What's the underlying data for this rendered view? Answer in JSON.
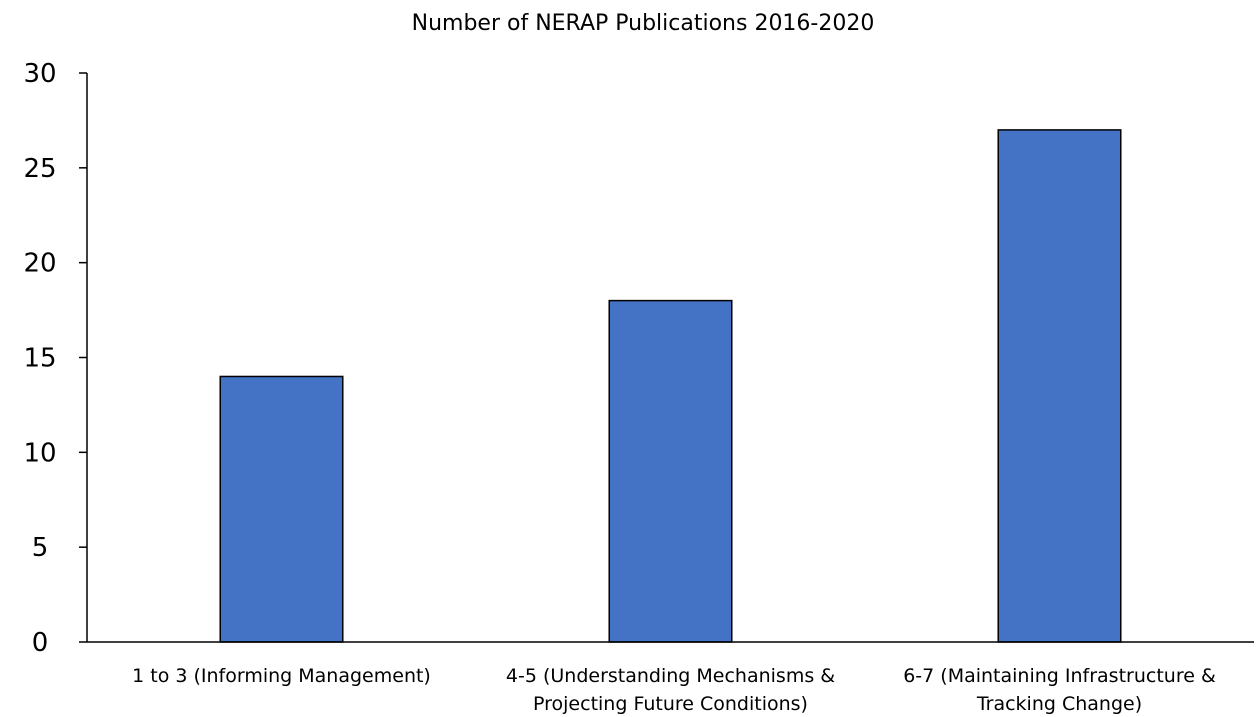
{
  "chart_data": {
    "type": "bar",
    "title": "Number of NERAP Publications 2016-2020",
    "categories": [
      [
        "1 to 3 (Informing Management)"
      ],
      [
        "4-5 (Understanding Mechanisms &",
        "Projecting Future Conditions)"
      ],
      [
        "6-7 (Maintaining Infrastructure &",
        "Tracking Change)"
      ]
    ],
    "values": [
      14,
      18,
      27
    ],
    "ylim": [
      0,
      30
    ],
    "yticks": [
      "0",
      "5",
      "10",
      "15",
      "20",
      "25",
      "30"
    ],
    "xlabel": "",
    "ylabel": "",
    "grid": false,
    "legend": "none",
    "bar_color": "#4472c4"
  }
}
